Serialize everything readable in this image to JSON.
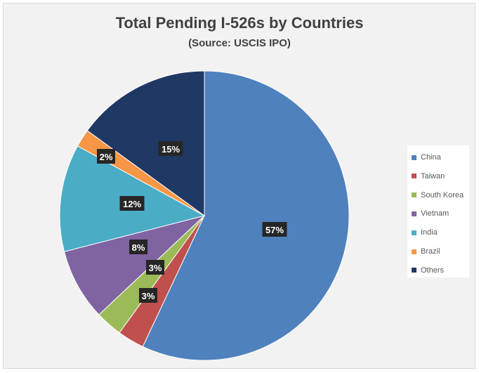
{
  "chart_data": {
    "type": "pie",
    "title": "Total Pending I-526s by Countries",
    "subtitle": "(Source: USCIS IPO)",
    "categories": [
      "China",
      "Taiwan",
      "South Korea",
      "Vietnam",
      "India",
      "Brazil",
      "Others"
    ],
    "values": [
      57,
      3,
      3,
      8,
      12,
      2,
      15
    ],
    "data_labels": [
      "57%",
      "3%",
      "3%",
      "8%",
      "12%",
      "2%",
      "15%"
    ],
    "colors": [
      "#4f81bd",
      "#c0504d",
      "#9bbb59",
      "#8064a2",
      "#4bacc6",
      "#f79646",
      "#1f3864"
    ],
    "legend_position": "right",
    "start_angle": "12 o'clock",
    "direction": "clockwise"
  }
}
